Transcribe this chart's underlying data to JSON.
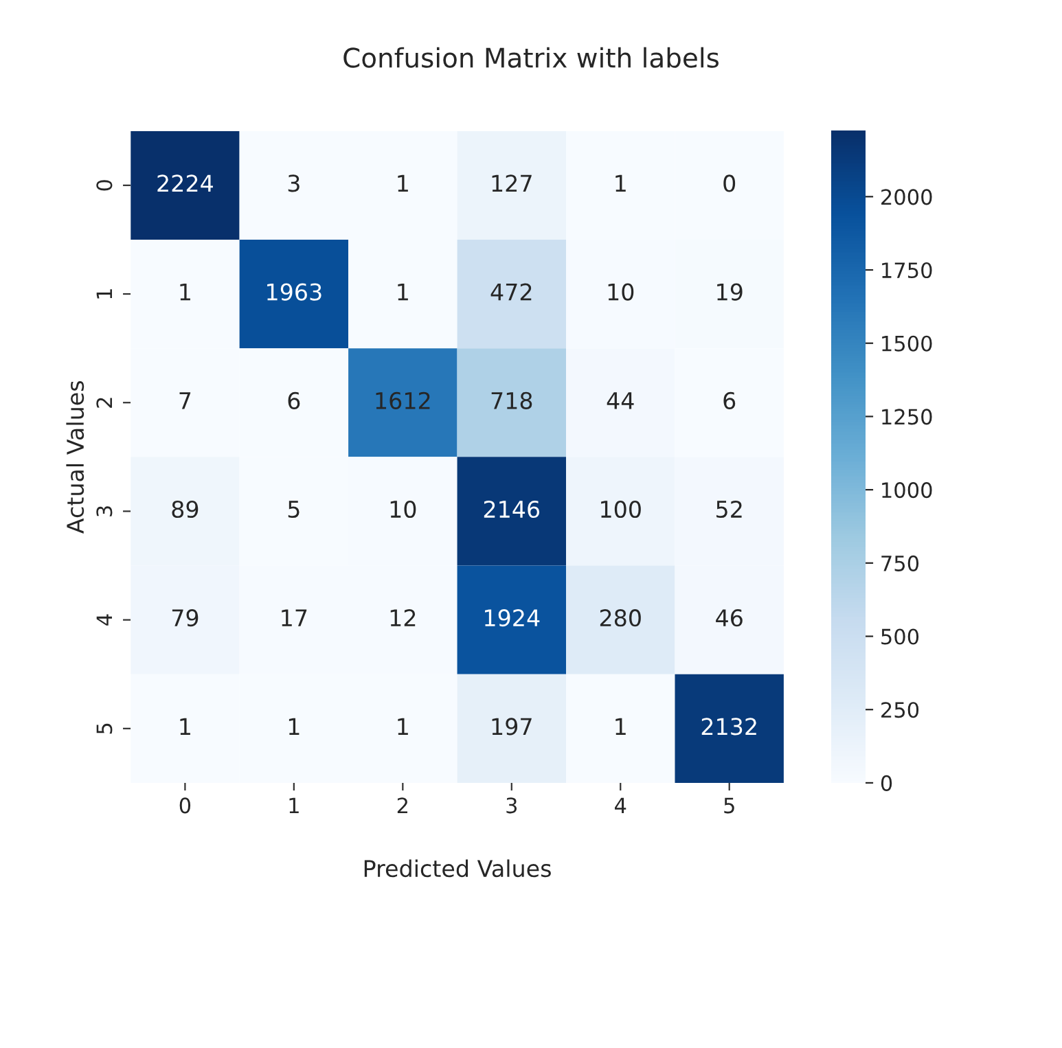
{
  "chart_data": {
    "type": "heatmap",
    "title": "Confusion Matrix with labels",
    "xlabel": "Predicted Values",
    "ylabel": "Actual Values",
    "categories": [
      "0",
      "1",
      "2",
      "3",
      "4",
      "5"
    ],
    "y_categories": [
      "0",
      "1",
      "2",
      "3",
      "4",
      "5"
    ],
    "cells": [
      [
        2224,
        3,
        1,
        127,
        1,
        0
      ],
      [
        1,
        1963,
        1,
        472,
        10,
        19
      ],
      [
        7,
        6,
        1612,
        718,
        44,
        6
      ],
      [
        89,
        5,
        10,
        2146,
        100,
        52
      ],
      [
        79,
        17,
        12,
        1924,
        280,
        46
      ],
      [
        1,
        1,
        1,
        197,
        1,
        2132
      ]
    ],
    "clim": [
      0,
      2224
    ],
    "cticks": [
      0,
      250,
      500,
      750,
      1000,
      1250,
      1500,
      1750,
      2000
    ],
    "data_labels": true
  }
}
